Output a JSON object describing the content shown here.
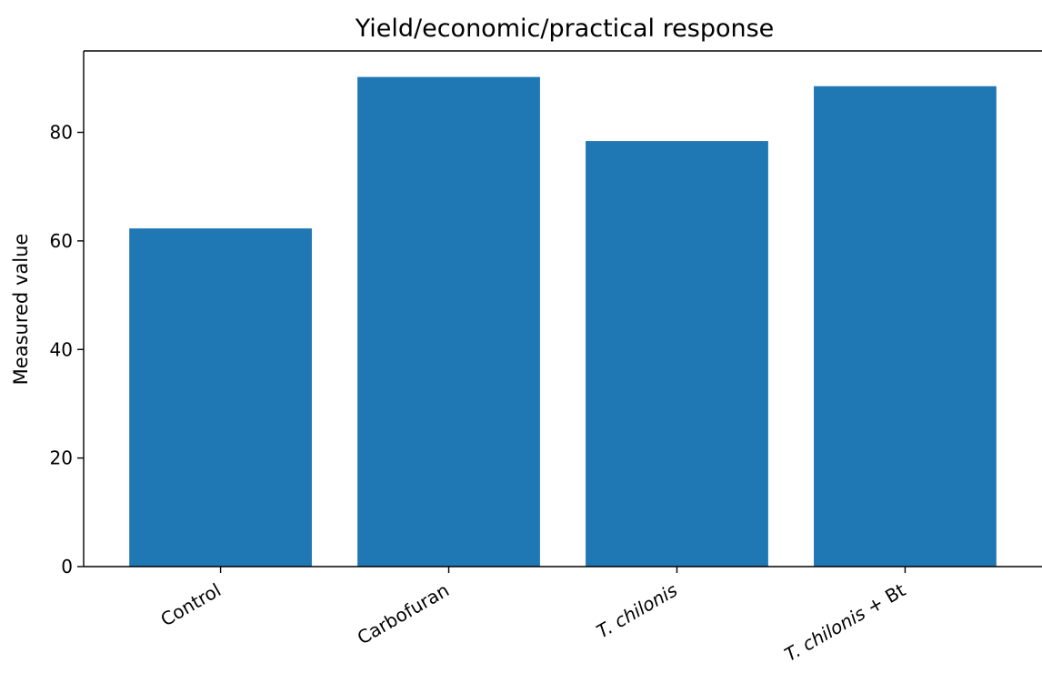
{
  "chart_data": {
    "type": "bar",
    "title": "Yield/economic/practical response",
    "xlabel": "",
    "ylabel": "Measured value",
    "categories": [
      "Control",
      "Carbofuran",
      "T. chilonis",
      "T. chilonis + Bt"
    ],
    "values": [
      62.3,
      90.2,
      78.4,
      88.5
    ],
    "ylim": [
      0,
      95
    ],
    "yticks": [
      0,
      20,
      40,
      60,
      80
    ],
    "grid": false,
    "bar_color": "#1f77b4",
    "italic_category_terms": [
      "T. chilonis"
    ]
  }
}
